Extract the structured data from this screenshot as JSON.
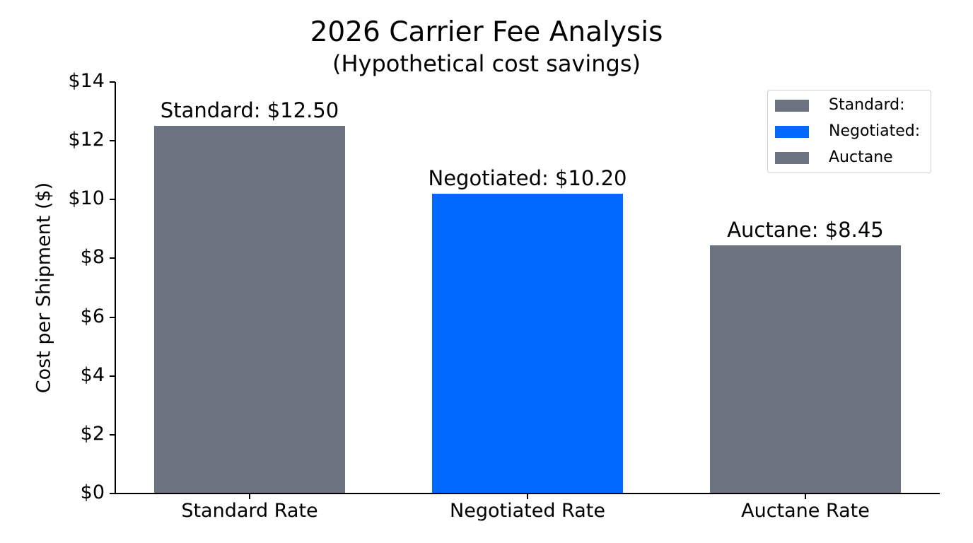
{
  "chart_data": {
    "type": "bar",
    "title": "2026 Carrier Fee Analysis",
    "subtitle": "(Hypothetical cost savings)",
    "xlabel": "",
    "ylabel": "Cost per Shipment ($)",
    "categories": [
      "Standard Rate",
      "Negotiated Rate",
      "Auctane Rate"
    ],
    "values": [
      12.5,
      10.2,
      8.45
    ],
    "bar_labels": [
      "Standard: $12.50",
      "Negotiated: $10.20",
      "Auctane: $8.45"
    ],
    "colors": [
      "#6b7280",
      "#0069ff",
      "#6b7280"
    ],
    "ylim": [
      0,
      14
    ],
    "yticks": [
      0,
      2,
      4,
      6,
      8,
      10,
      12,
      14
    ],
    "ytick_labels": [
      "$0",
      "$2",
      "$4",
      "$6",
      "$8",
      "$10",
      "$12",
      "$14"
    ],
    "grid": false,
    "legend": {
      "position": "upper right",
      "entries": [
        {
          "label": "Standard:",
          "color": "#6b7280"
        },
        {
          "label": "Negotiated:",
          "color": "#0069ff"
        },
        {
          "label": "Auctane",
          "color": "#6b7280"
        }
      ]
    }
  }
}
